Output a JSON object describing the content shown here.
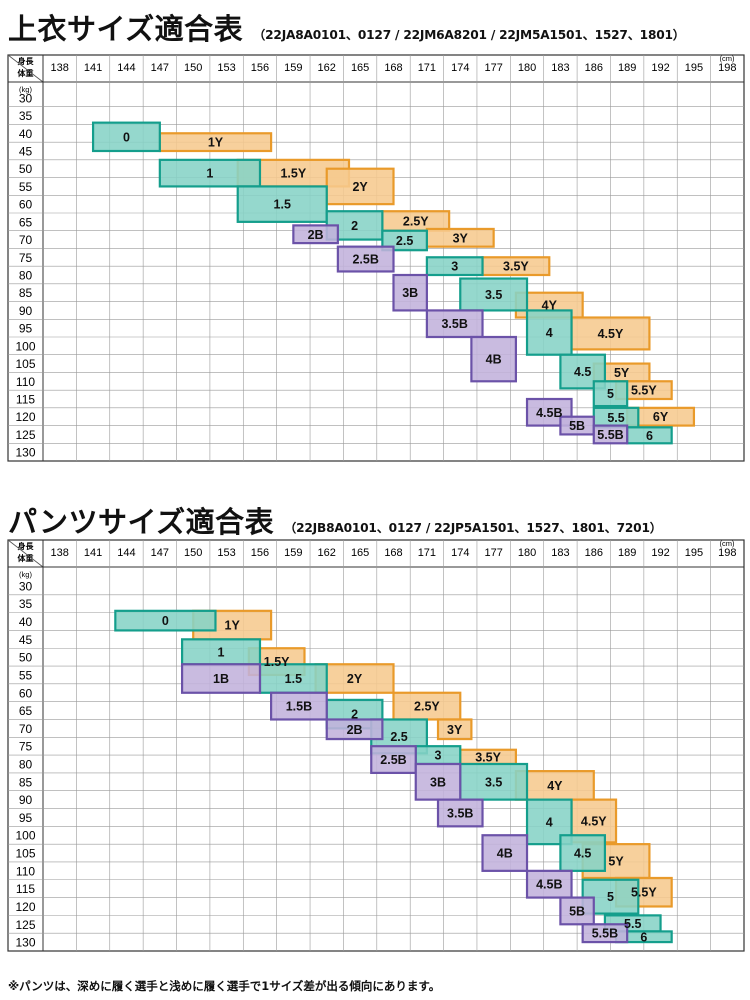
{
  "colors": {
    "youth_fill": "#f6c98e",
    "youth_stroke": "#e99a2a",
    "regular_fill": "#86d3c6",
    "regular_stroke": "#149e8c",
    "big_fill": "#c1b2dc",
    "big_stroke": "#6b52a8",
    "grid": "#9a9a9a"
  },
  "footnote": "※パンツは、深めに履く選手と浅めに履く選手で1サイズ差が出る傾向にあります。",
  "chart_data": [
    {
      "type": "table",
      "title": "上衣サイズ適合表",
      "models": "（22JA8A0101、0127 / 22JM6A8201 / 22JM5A1501、1527、1801）",
      "x_header": "身長",
      "y_header": "体重",
      "x_unit": "(cm)",
      "y_unit": "(kg)",
      "x_ticks": [
        138,
        141,
        144,
        147,
        150,
        153,
        156,
        159,
        162,
        165,
        168,
        171,
        174,
        177,
        180,
        183,
        186,
        189,
        192,
        195,
        198
      ],
      "y_ticks": [
        30,
        35,
        40,
        45,
        50,
        55,
        60,
        65,
        70,
        75,
        80,
        85,
        90,
        95,
        100,
        105,
        110,
        115,
        120,
        125,
        130
      ],
      "series_order": [
        "youth",
        "regular",
        "big"
      ],
      "sizes": [
        {
          "label": "1Y",
          "series": "youth",
          "x": [
            147,
            157
          ],
          "y": [
            40,
            45
          ]
        },
        {
          "label": "1.5Y",
          "series": "youth",
          "x": [
            154,
            164
          ],
          "y": [
            47.5,
            55
          ]
        },
        {
          "label": "2Y",
          "series": "youth",
          "x": [
            162,
            168
          ],
          "y": [
            50,
            60
          ]
        },
        {
          "label": "2.5Y",
          "series": "youth",
          "x": [
            167,
            173
          ],
          "y": [
            62,
            67.5
          ]
        },
        {
          "label": "3Y",
          "series": "youth",
          "x": [
            171,
            177
          ],
          "y": [
            67,
            72
          ]
        },
        {
          "label": "3.5Y",
          "series": "youth",
          "x": [
            176,
            182
          ],
          "y": [
            75,
            80
          ]
        },
        {
          "label": "4Y",
          "series": "youth",
          "x": [
            179,
            185
          ],
          "y": [
            85,
            92
          ]
        },
        {
          "label": "4.5Y",
          "series": "youth",
          "x": [
            184,
            191
          ],
          "y": [
            92,
            101
          ]
        },
        {
          "label": "5Y",
          "series": "youth",
          "x": [
            186,
            191
          ],
          "y": [
            105,
            110
          ]
        },
        {
          "label": "5.5Y",
          "series": "youth",
          "x": [
            188,
            193
          ],
          "y": [
            110,
            115
          ]
        },
        {
          "label": "6Y",
          "series": "youth",
          "x": [
            189,
            195
          ],
          "y": [
            117.5,
            122.5
          ]
        },
        {
          "label": "0",
          "series": "regular",
          "x": [
            141,
            147
          ],
          "y": [
            37,
            45
          ]
        },
        {
          "label": "1",
          "series": "regular",
          "x": [
            147,
            156
          ],
          "y": [
            47.5,
            55
          ]
        },
        {
          "label": "1.5",
          "series": "regular",
          "x": [
            154,
            162
          ],
          "y": [
            55,
            65
          ]
        },
        {
          "label": "2",
          "series": "regular",
          "x": [
            162,
            167
          ],
          "y": [
            62,
            70
          ]
        },
        {
          "label": "2.5",
          "series": "regular",
          "x": [
            167,
            171
          ],
          "y": [
            67.5,
            73
          ]
        },
        {
          "label": "3",
          "series": "regular",
          "x": [
            171,
            176
          ],
          "y": [
            75,
            80
          ]
        },
        {
          "label": "3.5",
          "series": "regular",
          "x": [
            174,
            180
          ],
          "y": [
            81,
            90
          ]
        },
        {
          "label": "4",
          "series": "regular",
          "x": [
            180,
            184
          ],
          "y": [
            90,
            102.5
          ]
        },
        {
          "label": "4.5",
          "series": "regular",
          "x": [
            183,
            187
          ],
          "y": [
            102.5,
            112
          ]
        },
        {
          "label": "5",
          "series": "regular",
          "x": [
            186,
            189
          ],
          "y": [
            110,
            117
          ]
        },
        {
          "label": "5.5",
          "series": "regular",
          "x": [
            186,
            190
          ],
          "y": [
            117.5,
            123
          ]
        },
        {
          "label": "6",
          "series": "regular",
          "x": [
            189,
            193
          ],
          "y": [
            123,
            127.5
          ]
        },
        {
          "label": "2B",
          "series": "big",
          "x": [
            159,
            163
          ],
          "y": [
            66,
            71
          ]
        },
        {
          "label": "2.5B",
          "series": "big",
          "x": [
            163,
            168
          ],
          "y": [
            72,
            79
          ]
        },
        {
          "label": "3B",
          "series": "big",
          "x": [
            168,
            171
          ],
          "y": [
            80,
            90
          ]
        },
        {
          "label": "3.5B",
          "series": "big",
          "x": [
            171,
            176
          ],
          "y": [
            90,
            97.5
          ]
        },
        {
          "label": "4B",
          "series": "big",
          "x": [
            175,
            179
          ],
          "y": [
            97.5,
            110
          ]
        },
        {
          "label": "4.5B",
          "series": "big",
          "x": [
            180,
            184
          ],
          "y": [
            115,
            122.5
          ]
        },
        {
          "label": "5B",
          "series": "big",
          "x": [
            183,
            186
          ],
          "y": [
            120,
            125
          ]
        },
        {
          "label": "5.5B",
          "series": "big",
          "x": [
            186,
            189
          ],
          "y": [
            122.5,
            127.5
          ]
        }
      ]
    },
    {
      "type": "table",
      "title": "パンツサイズ適合表",
      "models": "（22JB8A0101、0127 / 22JP5A1501、1527、1801、7201）",
      "x_header": "身長",
      "y_header": "体重",
      "x_unit": "(cm)",
      "y_unit": "(kg)",
      "x_ticks": [
        138,
        141,
        144,
        147,
        150,
        153,
        156,
        159,
        162,
        165,
        168,
        171,
        174,
        177,
        180,
        183,
        186,
        189,
        192,
        195,
        198
      ],
      "y_ticks": [
        30,
        35,
        40,
        45,
        50,
        55,
        60,
        65,
        70,
        75,
        80,
        85,
        90,
        95,
        100,
        105,
        110,
        115,
        120,
        125,
        130
      ],
      "series_order": [
        "youth",
        "regular",
        "big"
      ],
      "sizes": [
        {
          "label": "1Y",
          "series": "youth",
          "x": [
            150,
            157
          ],
          "y": [
            37,
            45
          ]
        },
        {
          "label": "1.5Y",
          "series": "youth",
          "x": [
            155,
            160
          ],
          "y": [
            47.5,
            55
          ]
        },
        {
          "label": "2Y",
          "series": "youth",
          "x": [
            161,
            168
          ],
          "y": [
            52,
            60
          ]
        },
        {
          "label": "2.5Y",
          "series": "youth",
          "x": [
            168,
            174
          ],
          "y": [
            60,
            67.5
          ]
        },
        {
          "label": "3Y",
          "series": "youth",
          "x": [
            172,
            175
          ],
          "y": [
            67.5,
            73
          ]
        },
        {
          "label": "3.5Y",
          "series": "youth",
          "x": [
            174,
            179
          ],
          "y": [
            76,
            80
          ]
        },
        {
          "label": "4Y",
          "series": "youth",
          "x": [
            179,
            186
          ],
          "y": [
            82,
            90
          ]
        },
        {
          "label": "4.5Y",
          "series": "youth",
          "x": [
            184,
            188
          ],
          "y": [
            90,
            102
          ]
        },
        {
          "label": "5Y",
          "series": "youth",
          "x": [
            185,
            191
          ],
          "y": [
            102.5,
            112
          ]
        },
        {
          "label": "5.5Y",
          "series": "youth",
          "x": [
            188,
            193
          ],
          "y": [
            112,
            120
          ]
        },
        {
          "label": "0",
          "series": "regular",
          "x": [
            143,
            152
          ],
          "y": [
            37,
            42.5
          ]
        },
        {
          "label": "1",
          "series": "regular",
          "x": [
            149,
            156
          ],
          "y": [
            45,
            52
          ]
        },
        {
          "label": "1.5",
          "series": "regular",
          "x": [
            156,
            162
          ],
          "y": [
            52,
            60
          ]
        },
        {
          "label": "2",
          "series": "regular",
          "x": [
            162,
            167
          ],
          "y": [
            62,
            70
          ]
        },
        {
          "label": "2.5",
          "series": "regular",
          "x": [
            166,
            171
          ],
          "y": [
            67.5,
            77
          ]
        },
        {
          "label": "3",
          "series": "regular",
          "x": [
            170,
            174
          ],
          "y": [
            75,
            80
          ]
        },
        {
          "label": "3.5",
          "series": "regular",
          "x": [
            174,
            180
          ],
          "y": [
            80,
            90
          ]
        },
        {
          "label": "4",
          "series": "regular",
          "x": [
            180,
            184
          ],
          "y": [
            90,
            102.5
          ]
        },
        {
          "label": "4.5",
          "series": "regular",
          "x": [
            183,
            187
          ],
          "y": [
            100,
            110
          ]
        },
        {
          "label": "5",
          "series": "regular",
          "x": [
            185,
            190
          ],
          "y": [
            112.5,
            122
          ]
        },
        {
          "label": "5.5",
          "series": "regular",
          "x": [
            187,
            192
          ],
          "y": [
            122.5,
            127
          ]
        },
        {
          "label": "6",
          "series": "regular",
          "x": [
            188,
            193
          ],
          "y": [
            127,
            130
          ]
        },
        {
          "label": "1B",
          "series": "big",
          "x": [
            149,
            156
          ],
          "y": [
            52,
            60
          ]
        },
        {
          "label": "1.5B",
          "series": "big",
          "x": [
            157,
            162
          ],
          "y": [
            60,
            67.5
          ]
        },
        {
          "label": "2B",
          "series": "big",
          "x": [
            162,
            167
          ],
          "y": [
            67.5,
            73
          ]
        },
        {
          "label": "2.5B",
          "series": "big",
          "x": [
            166,
            170
          ],
          "y": [
            75,
            82.5
          ]
        },
        {
          "label": "3B",
          "series": "big",
          "x": [
            170,
            174
          ],
          "y": [
            80,
            90
          ]
        },
        {
          "label": "3.5B",
          "series": "big",
          "x": [
            172,
            176
          ],
          "y": [
            90,
            97.5
          ]
        },
        {
          "label": "4B",
          "series": "big",
          "x": [
            176,
            180
          ],
          "y": [
            100,
            110
          ]
        },
        {
          "label": "4.5B",
          "series": "big",
          "x": [
            180,
            184
          ],
          "y": [
            110,
            117.5
          ]
        },
        {
          "label": "5B",
          "series": "big",
          "x": [
            183,
            186
          ],
          "y": [
            117.5,
            125
          ]
        },
        {
          "label": "5.5B",
          "series": "big",
          "x": [
            185,
            189
          ],
          "y": [
            125,
            130
          ]
        }
      ]
    }
  ]
}
